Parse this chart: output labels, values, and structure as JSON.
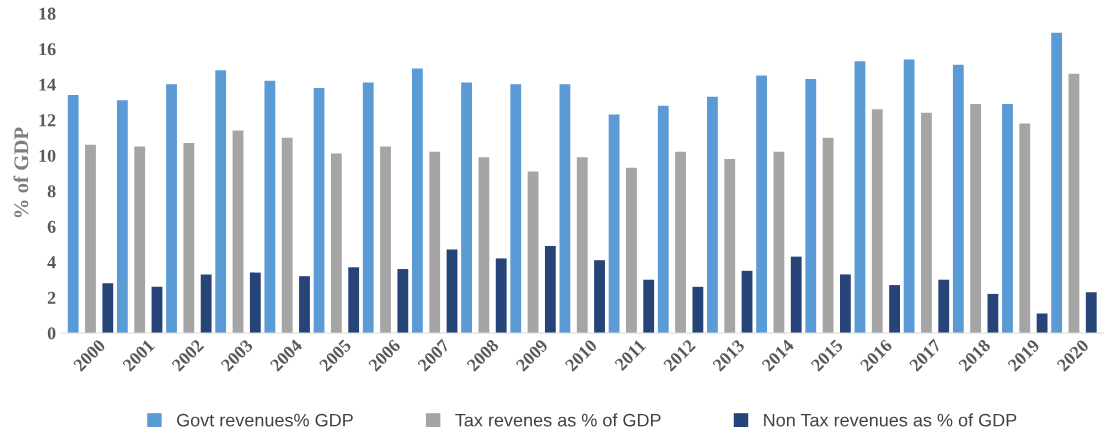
{
  "chart_data": {
    "type": "bar",
    "ylabel": "% of GDP",
    "categories": [
      "2000",
      "2001",
      "2002",
      "2003",
      "2004",
      "2005",
      "2006",
      "2007",
      "2008",
      "2009",
      "2010",
      "2011",
      "2012",
      "2013",
      "2014",
      "2015",
      "2016",
      "2017",
      "2018",
      "2019",
      "2020"
    ],
    "series": [
      {
        "name": "Govt revenues% GDP",
        "color": "#5b9bd5",
        "values": [
          13.4,
          13.1,
          14.0,
          14.8,
          14.2,
          13.8,
          14.1,
          14.9,
          14.1,
          14.0,
          14.0,
          12.3,
          12.8,
          13.3,
          14.5,
          14.3,
          15.3,
          15.4,
          15.1,
          12.9,
          16.9
        ]
      },
      {
        "name": "Tax revenes as % of GDP",
        "color": "#a5a5a5",
        "values": [
          10.6,
          10.5,
          10.7,
          11.4,
          11.0,
          10.1,
          10.5,
          10.2,
          9.9,
          9.1,
          9.9,
          9.3,
          10.2,
          9.8,
          10.2,
          11.0,
          12.6,
          12.4,
          12.9,
          11.8,
          14.6
        ]
      },
      {
        "name": "Non Tax revenues as % of GDP",
        "color": "#264478",
        "values": [
          2.8,
          2.6,
          3.3,
          3.4,
          3.2,
          3.7,
          3.6,
          4.7,
          4.2,
          4.9,
          4.1,
          3.0,
          2.6,
          3.5,
          4.3,
          3.3,
          2.7,
          3.0,
          2.2,
          1.1,
          2.3
        ]
      }
    ],
    "ylim": [
      0,
      18
    ],
    "yticks": [
      0,
      2,
      4,
      6,
      8,
      10,
      12,
      14,
      16,
      18
    ],
    "grid": false,
    "legend": "bottom"
  }
}
